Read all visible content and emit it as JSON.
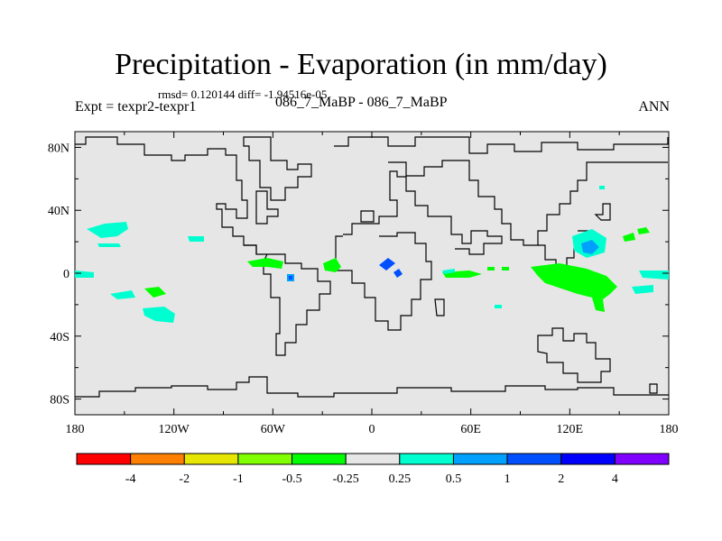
{
  "title": "Precipitation - Evaporation (in mm/day)",
  "stats": "rmsd= 0.120144 diff= -1.94516e-05",
  "expt_label": "Expt = texpr2-texpr1",
  "subtitle": "086_7_MaBP - 086_7_MaBP",
  "season": "ANN",
  "lat_ticks": [
    "80N",
    "40N",
    "0",
    "40S",
    "80S"
  ],
  "lat_values": [
    80,
    40,
    0,
    -40,
    -80
  ],
  "lon_ticks": [
    "180",
    "120W",
    "60W",
    "0",
    "60E",
    "120E",
    "180"
  ],
  "lon_values": [
    -180,
    -120,
    -60,
    0,
    60,
    120,
    180
  ],
  "colorbar": {
    "labels": [
      "-4",
      "-2",
      "-1",
      "-0.5",
      "-0.25",
      "0.25",
      "0.5",
      "1",
      "2",
      "4"
    ],
    "colors": [
      "#ff0000",
      "#ff8000",
      "#e6e600",
      "#80ff00",
      "#00ff00",
      "#e6e6e6",
      "#00ffd0",
      "#00a0ff",
      "#0050ff",
      "#0000ff",
      "#8000ff"
    ]
  },
  "colors": {
    "background_field": "#e6e6e6",
    "coastline": "#000000"
  }
}
